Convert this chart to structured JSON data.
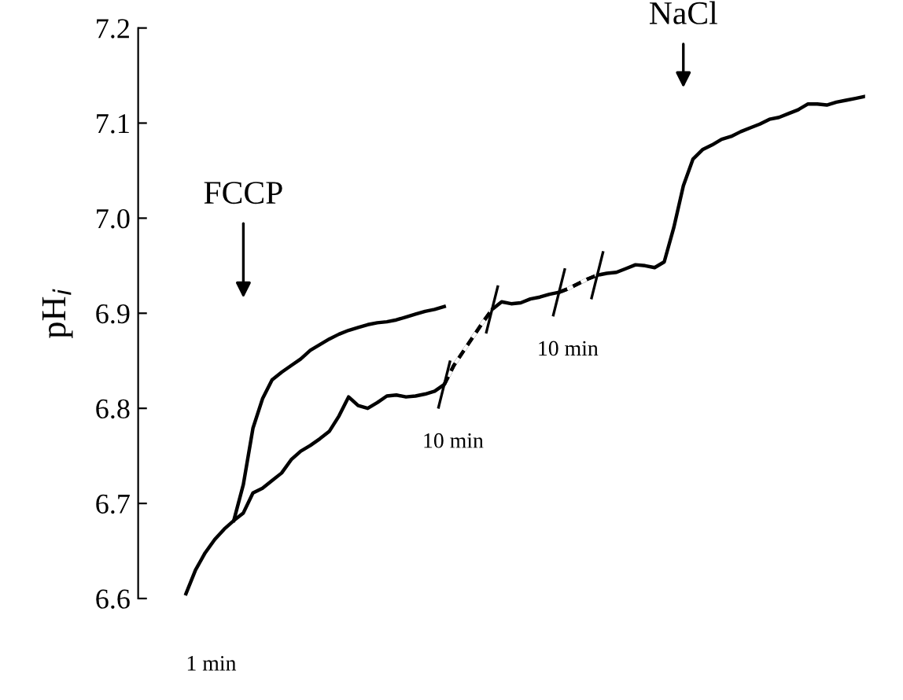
{
  "chart_data": {
    "type": "line",
    "ylabel": "pH$_{i}$",
    "categories": [
      null,
      null,
      null,
      null,
      null,
      null,
      null,
      null,
      null,
      null,
      null,
      null,
      null,
      null,
      null,
      null,
      null,
      null,
      null,
      null,
      null,
      null,
      null,
      null,
      null,
      null,
      null,
      null,
      null,
      null,
      null,
      null,
      null,
      null,
      null,
      null,
      null,
      null,
      null,
      null,
      null,
      null,
      null,
      null,
      null,
      null,
      null,
      null,
      null,
      null,
      null,
      null,
      null,
      null,
      null,
      null,
      null,
      null,
      null,
      null,
      null,
      null,
      null,
      null,
      null,
      null,
      null,
      null,
      null,
      null,
      null,
      null
    ],
    "series": [
      {
        "color": "#000000",
        "line_style": "solid",
        "values": [
          6.605,
          6.63,
          6.648,
          6.662,
          6.673,
          6.682,
          6.69,
          6.711,
          6.716,
          6.724,
          6.732,
          6.746,
          6.755,
          6.761,
          6.768,
          6.776,
          6.792,
          6.812,
          6.803,
          6.8,
          6.806,
          6.813,
          6.814,
          6.812,
          6.813,
          6.815,
          6.818,
          6.825,
          6.845,
          6.86,
          6.875,
          6.89,
          6.904,
          6.912,
          6.91,
          6.911,
          6.915,
          6.917,
          6.92,
          6.922,
          6.926,
          6.931,
          6.936,
          6.94,
          6.942,
          6.943,
          6.947,
          6.951,
          6.95,
          6.948,
          6.954,
          6.99,
          7.034,
          7.062,
          7.072,
          7.077,
          7.083,
          7.086,
          7.091,
          7.095,
          7.099,
          7.104,
          7.106,
          7.11,
          7.114,
          7.12,
          7.12,
          7.119,
          7.122,
          7.124,
          7.126,
          7.128
        ]
      },
      {
        "color": "#000000",
        "line_style": "solid",
        "values": [
          null,
          null,
          null,
          null,
          null,
          6.682,
          6.72,
          6.779,
          6.81,
          6.83,
          6.838,
          6.845,
          6.852,
          6.861,
          6.867,
          6.873,
          6.878,
          6.882,
          6.885,
          6.888,
          6.89,
          6.891,
          6.893,
          6.896,
          6.899,
          6.902,
          6.904,
          6.907,
          null,
          null,
          null,
          null,
          null,
          null,
          null,
          null,
          null,
          null,
          null,
          null,
          null,
          null,
          null,
          null,
          null,
          null,
          null,
          null,
          null,
          null,
          null,
          null,
          null,
          null,
          null,
          null,
          null,
          null,
          null,
          null,
          null,
          null,
          null,
          null,
          null,
          null,
          null,
          null,
          null,
          null,
          null,
          null
        ]
      },
      {
        "color": "#000000",
        "line_style": "dashed",
        "values": [
          null,
          null,
          null,
          null,
          null,
          null,
          null,
          null,
          null,
          null,
          null,
          null,
          null,
          null,
          null,
          null,
          null,
          null,
          null,
          null,
          null,
          null,
          null,
          null,
          null,
          null,
          null,
          6.825,
          6.845,
          6.86,
          6.875,
          6.89,
          6.904,
          null,
          null,
          null,
          null,
          null,
          null,
          null,
          null,
          null,
          null,
          null,
          null,
          null,
          null,
          null,
          null,
          null,
          null,
          null,
          null,
          null,
          null,
          null,
          null,
          null,
          null,
          null,
          null,
          null,
          null,
          null,
          null,
          null,
          null,
          null,
          null,
          null,
          null,
          null
        ]
      },
      {
        "color": "#000000",
        "line_style": "dashed",
        "values": [
          null,
          null,
          null,
          null,
          null,
          null,
          null,
          null,
          null,
          null,
          null,
          null,
          null,
          null,
          null,
          null,
          null,
          null,
          null,
          null,
          null,
          null,
          null,
          null,
          null,
          null,
          null,
          null,
          null,
          null,
          null,
          null,
          null,
          null,
          null,
          null,
          null,
          null,
          null,
          6.922,
          6.926,
          6.931,
          6.936,
          6.94,
          null,
          null,
          null,
          null,
          null,
          null,
          null,
          null,
          null,
          null,
          null,
          null,
          null,
          null,
          null,
          null,
          null,
          null,
          null,
          null,
          null,
          null,
          null,
          null,
          null,
          null,
          null,
          null
        ]
      }
    ],
    "ylim": [
      6.6,
      7.2
    ],
    "yticks": [
      6.6,
      6.7,
      6.8,
      6.9,
      {
        "value": 7.0,
        "label": "7.0"
      },
      7.1,
      7.2
    ],
    "tick_labels": "y",
    "grid": false,
    "legend": false,
    "annotations": [
      "1 min",
      "10 min",
      "10 min",
      "FCCP",
      "NaCl"
    ]
  }
}
